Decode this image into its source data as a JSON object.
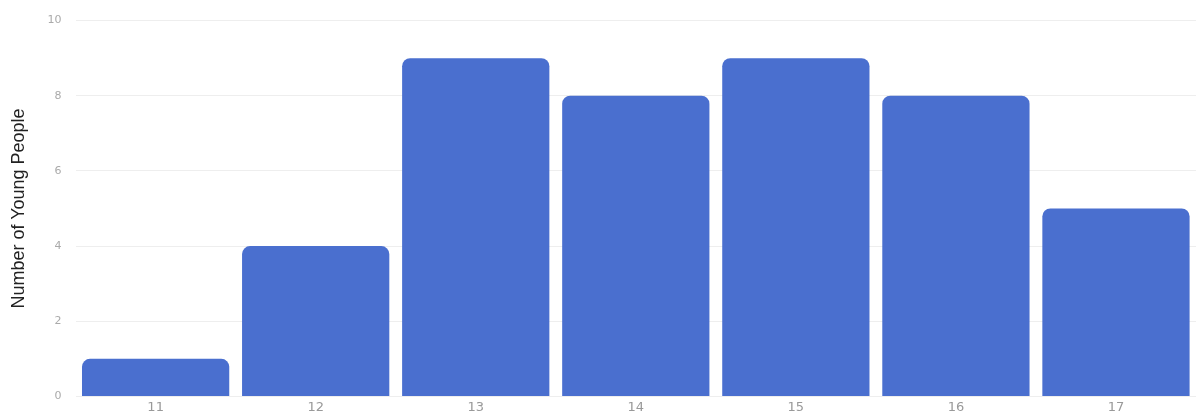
{
  "chart_data": {
    "type": "bar",
    "ylabel": "Number of Young People",
    "categories": [
      "11",
      "12",
      "13",
      "14",
      "15",
      "16",
      "17"
    ],
    "values": [
      1,
      4,
      9,
      8,
      9,
      8,
      5
    ],
    "color": "#4a6fcf",
    "ylim": [
      0,
      10
    ],
    "yticks": [
      0,
      2,
      4,
      6,
      8,
      10
    ],
    "grid": "y"
  }
}
